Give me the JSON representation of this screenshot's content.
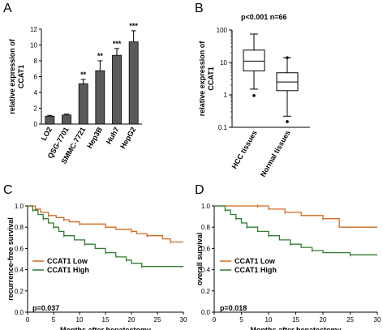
{
  "panels": {
    "a": {
      "letter": "A"
    },
    "b": {
      "letter": "B"
    },
    "c": {
      "letter": "C"
    },
    "d": {
      "letter": "D"
    }
  },
  "colors": {
    "low": "#d2691e",
    "high": "#2e7d32",
    "bar": "#5a5a5a",
    "axis": "#000000"
  },
  "chart_data": [
    {
      "type": "bar",
      "panel": "A",
      "categories": [
        "LO2",
        "QSG-7701",
        "SMMC-7721",
        "Hep3B",
        "Huh7",
        "HepG2"
      ],
      "values": [
        1.0,
        1.15,
        5.1,
        6.75,
        8.7,
        10.4
      ],
      "errors": [
        0.1,
        0.1,
        0.55,
        1.25,
        0.85,
        1.4
      ],
      "significance": [
        "",
        "",
        "**",
        "**",
        "***",
        "***"
      ],
      "ylabel_lines": [
        "relative expression of",
        "CCAT1"
      ],
      "ylim": [
        0,
        12
      ],
      "yticks": [
        0,
        2,
        4,
        6,
        8,
        10,
        12
      ]
    },
    {
      "type": "box",
      "panel": "B",
      "annotation": "p<0.001 n=66",
      "categories": [
        "HCC tissues",
        "Normal tissues"
      ],
      "ylabel_lines": [
        "relative expression of",
        "CCAT1"
      ],
      "yscale": "log",
      "ylim": [
        0.1,
        100
      ],
      "ytick_labels": [
        "0.1",
        "1",
        "10",
        "100"
      ],
      "boxes": [
        {
          "name": "HCC tissues",
          "whisker_low": 1.5,
          "q1": 5.5,
          "median": 11,
          "q3": 24,
          "whisker_high": 75,
          "outliers": [
            0.95
          ]
        },
        {
          "name": "Normal tissues",
          "whisker_low": 0.22,
          "q1": 1.35,
          "median": 2.5,
          "q3": 4.8,
          "whisker_high": 14,
          "outliers": [
            0.15,
            14
          ]
        }
      ]
    },
    {
      "type": "line",
      "panel": "C",
      "annotation": "p=0.037",
      "ylabel": "recurrence-free survival",
      "xlabel": "Months after hepatectomy",
      "xlim": [
        0,
        30
      ],
      "ylim": [
        0.0,
        1.0
      ],
      "xticks": [
        0,
        5,
        10,
        15,
        20,
        25,
        30
      ],
      "ytick_labels": [
        "0.0",
        "0.2",
        "0.4",
        "0.6",
        "0.8",
        "1.0"
      ],
      "series": [
        {
          "name": "CCAT1 Low",
          "x": [
            0,
            1.5,
            2.5,
            4,
            5.5,
            7,
            8,
            10,
            13,
            15,
            17,
            20,
            21,
            23,
            26,
            27.5,
            30
          ],
          "y": [
            1.0,
            0.97,
            0.94,
            0.91,
            0.89,
            0.87,
            0.85,
            0.83,
            0.83,
            0.8,
            0.78,
            0.76,
            0.74,
            0.72,
            0.69,
            0.66,
            0.66
          ]
        },
        {
          "name": "CCAT1 High",
          "x": [
            0,
            1,
            2,
            3,
            4,
            5,
            6,
            7,
            9,
            11,
            13,
            15,
            17,
            19,
            20,
            22,
            30
          ],
          "y": [
            1.0,
            0.96,
            0.92,
            0.88,
            0.84,
            0.8,
            0.76,
            0.72,
            0.68,
            0.64,
            0.6,
            0.56,
            0.52,
            0.49,
            0.46,
            0.43,
            0.43
          ]
        }
      ]
    },
    {
      "type": "line",
      "panel": "D",
      "annotation": "p=0.018",
      "ylabel": "overall survival",
      "xlabel": "Months after hepatectomy",
      "xlim": [
        0,
        30
      ],
      "ylim": [
        0.0,
        1.0
      ],
      "xticks": [
        0,
        5,
        10,
        15,
        20,
        25,
        30
      ],
      "ytick_labels": [
        "0.0",
        "0.2",
        "0.4",
        "0.6",
        "0.8",
        "1.0"
      ],
      "series": [
        {
          "name": "CCAT1 Low",
          "x": [
            0,
            8,
            10,
            13,
            16,
            20,
            23,
            30
          ],
          "y": [
            1.0,
            1.0,
            0.97,
            0.94,
            0.91,
            0.88,
            0.8,
            0.8
          ]
        },
        {
          "name": "CCAT1 High",
          "x": [
            0,
            2,
            3,
            4,
            5,
            6,
            8,
            10,
            12,
            14,
            16,
            18,
            20,
            25,
            30
          ],
          "y": [
            1.0,
            0.96,
            0.92,
            0.88,
            0.84,
            0.8,
            0.76,
            0.72,
            0.68,
            0.64,
            0.61,
            0.58,
            0.56,
            0.54,
            0.54
          ]
        }
      ]
    }
  ]
}
